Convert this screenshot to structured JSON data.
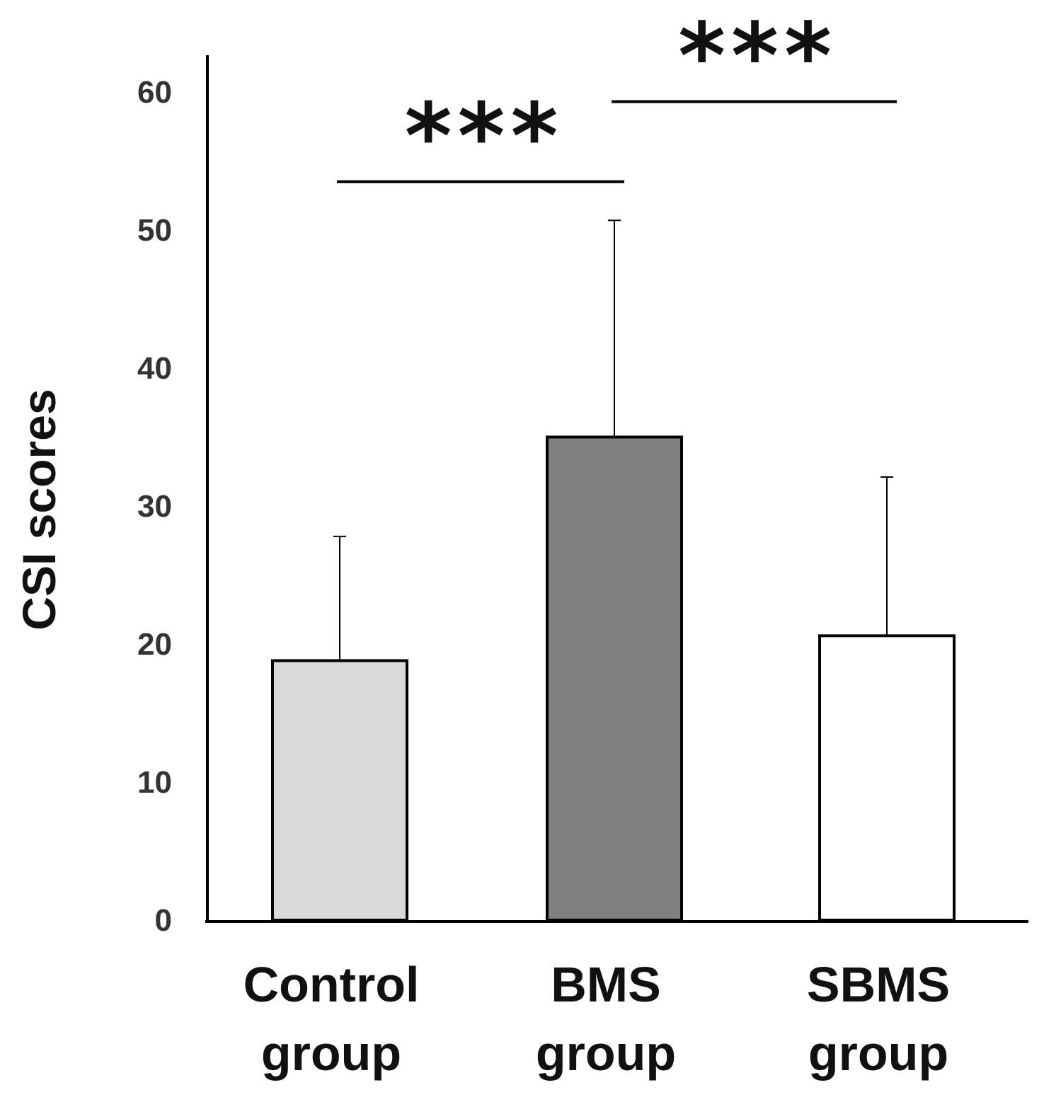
{
  "chart_data": {
    "type": "bar",
    "title": "",
    "xlabel": "",
    "ylabel": "CSI scores",
    "ylim": [
      0,
      60
    ],
    "yticks": [
      "0",
      "10",
      "20",
      "30",
      "40",
      "50",
      "60"
    ],
    "grid": false,
    "legend": "none",
    "categories": [
      [
        "Control",
        "group"
      ],
      [
        "BMS",
        "group"
      ],
      [
        "SBMS",
        "group"
      ]
    ],
    "values": [
      18.8,
      35.0,
      20.6
    ],
    "error_upper": [
      9.0,
      15.7,
      11.5
    ],
    "bar_colors": [
      "#d9d9d9",
      "#808080",
      "#ffffff"
    ],
    "significance": [
      {
        "from": 0,
        "to": 1,
        "label": "***",
        "y": 53.5
      },
      {
        "from": 1,
        "to": 2,
        "label": "***",
        "y": 59.3
      }
    ]
  }
}
